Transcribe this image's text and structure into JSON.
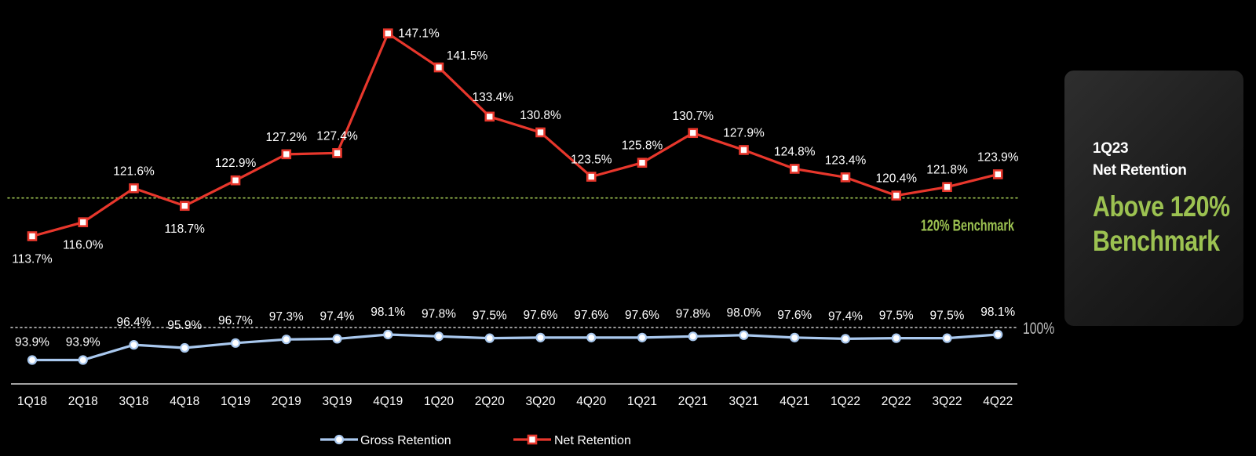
{
  "chart_data": {
    "type": "line",
    "categories": [
      "1Q18",
      "2Q18",
      "3Q18",
      "4Q18",
      "1Q19",
      "2Q19",
      "3Q19",
      "4Q19",
      "1Q20",
      "2Q20",
      "3Q20",
      "4Q20",
      "1Q21",
      "2Q21",
      "3Q21",
      "4Q21",
      "1Q22",
      "2Q22",
      "3Q22",
      "4Q22"
    ],
    "series": [
      {
        "name": "Gross Retention",
        "color": "#a9c8ee",
        "marker": "circle",
        "values": [
          93.9,
          93.9,
          96.4,
          95.9,
          96.7,
          97.3,
          97.4,
          98.1,
          97.8,
          97.5,
          97.6,
          97.6,
          97.6,
          97.8,
          98.0,
          97.6,
          97.4,
          97.5,
          97.5,
          98.1
        ],
        "labels": [
          "93.9%",
          "93.9%",
          "96.4%",
          "95.9%",
          "96.7%",
          "97.3%",
          "97.4%",
          "98.1%",
          "97.8%",
          "97.5%",
          "97.6%",
          "97.6%",
          "97.6%",
          "97.8%",
          "98.0%",
          "97.6%",
          "97.4%",
          "97.5%",
          "97.5%",
          "98.1%"
        ]
      },
      {
        "name": "Net Retention",
        "color": "#e8372c",
        "marker": "square",
        "values": [
          113.7,
          116.0,
          121.6,
          118.7,
          122.9,
          127.2,
          127.4,
          147.1,
          141.5,
          133.4,
          130.8,
          123.5,
          125.8,
          130.7,
          127.9,
          124.8,
          123.4,
          120.4,
          121.8,
          123.9
        ],
        "labels": [
          "113.7%",
          "116.0%",
          "121.6%",
          "118.7%",
          "122.9%",
          "127.2%",
          "127.4%",
          "147.1%",
          "141.5%",
          "133.4%",
          "130.8%",
          "123.5%",
          "125.8%",
          "130.7%",
          "127.9%",
          "124.8%",
          "123.4%",
          "120.4%",
          "121.8%",
          "123.9%"
        ],
        "label_position": [
          "below",
          "below",
          "above",
          "below",
          "above",
          "above",
          "above",
          "right",
          "above",
          "above",
          "above",
          "above",
          "above",
          "above",
          "above",
          "above",
          "above",
          "above",
          "above",
          "above"
        ]
      }
    ],
    "reference_lines": [
      {
        "series": "Net Retention",
        "value": 120,
        "label": "120% Benchmark",
        "color": "#9cc251",
        "style": "dotted"
      },
      {
        "series": "Gross Retention",
        "value": 100,
        "label": "100%",
        "color": "#cfcfcf",
        "style": "dotted"
      }
    ],
    "ylim_net": [
      110,
      150
    ],
    "ylim_gross": [
      90,
      100
    ],
    "legend": "bottom-center",
    "grid": false
  },
  "card": {
    "label_line1": "1Q23",
    "label_line2": "Net Retention",
    "headline_line1": "Above 120%",
    "headline_line2": "Benchmark"
  }
}
